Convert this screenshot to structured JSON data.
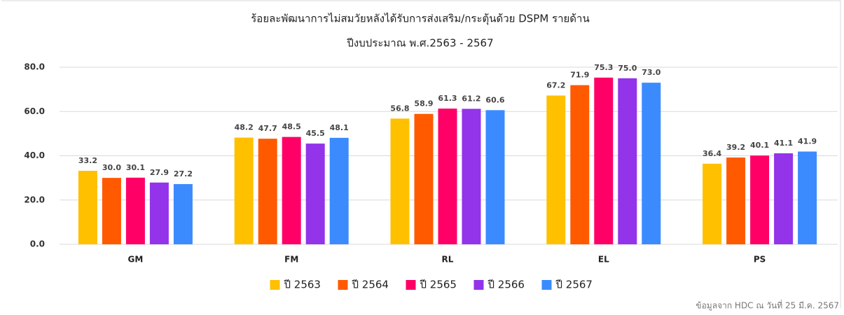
{
  "chart_data": {
    "type": "bar",
    "title": "ร้อยละพัฒนาการไม่สมวัยหลังได้รับการส่งเสริม/กระตุ้นด้วย DSPM รายด้าน",
    "subtitle": "ปีงบประมาณ พ.ศ.2563 - 2567",
    "categories": [
      "GM",
      "FM",
      "RL",
      "EL",
      "PS"
    ],
    "series": [
      {
        "name": "ปี 2563",
        "color": "#FFC000",
        "values": [
          33.2,
          48.2,
          56.8,
          67.2,
          36.4
        ],
        "value_labels": [
          "33.2",
          "48.2",
          "56.8",
          "67.2",
          "36.4"
        ]
      },
      {
        "name": "ปี 2564",
        "color": "#FF5A00",
        "values": [
          30,
          47.7,
          58.9,
          71.9,
          39.2
        ],
        "value_labels": [
          "30.0",
          "47.7",
          "58.9",
          "71.9",
          "39.2"
        ]
      },
      {
        "name": "ปี 2565",
        "color": "#FF0066",
        "values": [
          30.1,
          48.5,
          61.3,
          75.3,
          40.1
        ],
        "value_labels": [
          "30.1",
          "48.5",
          "61.3",
          "75.3",
          "40.1"
        ]
      },
      {
        "name": "ปี 2566",
        "color": "#9333EA",
        "values": [
          27.9,
          45.5,
          61.2,
          75,
          41.1
        ],
        "value_labels": [
          "27.9",
          "45.5",
          "61.2",
          "75.0",
          "41.1"
        ]
      },
      {
        "name": "ปี 2567",
        "color": "#3B8BFF",
        "values": [
          27.2,
          48.1,
          60.6,
          73,
          41.9
        ],
        "value_labels": [
          "27.2",
          "48.1",
          "60.6",
          "73.0",
          "41.9"
        ]
      }
    ],
    "ylim": [
      0,
      80
    ],
    "yticks": [
      {
        "value": 0,
        "label": "0.0"
      },
      {
        "value": 20,
        "label": "20.0"
      },
      {
        "value": 40,
        "label": "40.0"
      },
      {
        "value": 60,
        "label": "60.0"
      },
      {
        "value": 80,
        "label": "80.0"
      }
    ],
    "grid": true,
    "legend": "bottom",
    "source_note": "ข้อมูลจาก HDC ณ วันที่ 25 มี.ค. 2567"
  }
}
